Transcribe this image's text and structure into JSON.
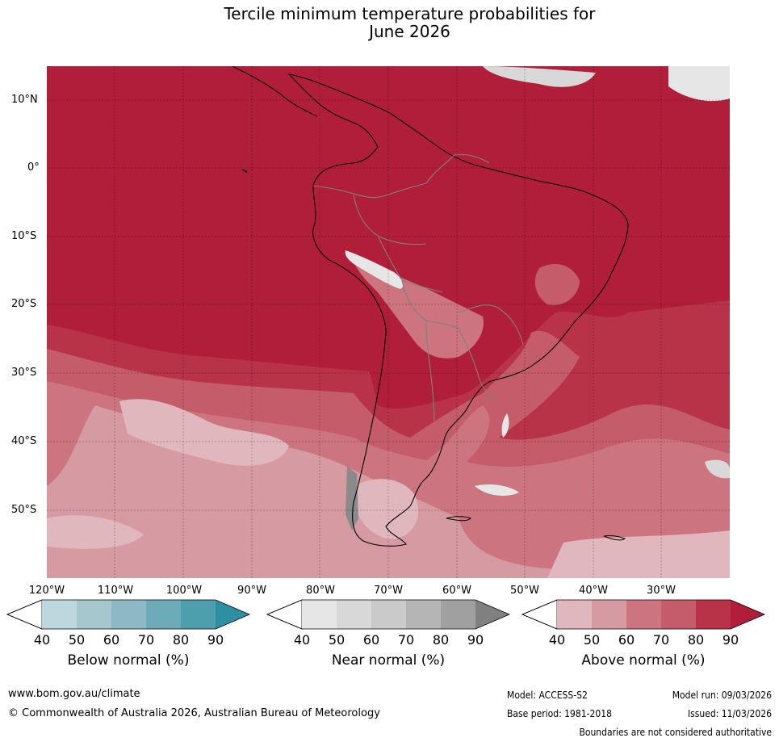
{
  "title": {
    "line1": "Tercile minimum temperature probabilities for",
    "line2": "June 2026"
  },
  "axes": {
    "lat_labels": [
      "10°N",
      "0°",
      "10°S",
      "20°S",
      "30°S",
      "40°S",
      "50°S"
    ],
    "lon_labels": [
      "120°W",
      "110°W",
      "100°W",
      "90°W",
      "80°W",
      "70°W",
      "60°W",
      "50°W",
      "40°W",
      "30°W"
    ]
  },
  "legend": {
    "ticks": [
      "40",
      "50",
      "60",
      "70",
      "80",
      "90"
    ],
    "below": {
      "label": "Below normal (%)",
      "colors": [
        "#bed7de",
        "#a6c7ce",
        "#8cb9c4",
        "#6eabb9",
        "#4d9fae",
        "#2e8fa3"
      ]
    },
    "near": {
      "label": "Near normal (%)",
      "colors": [
        "#e6e6e6",
        "#d8d8d8",
        "#cacaca",
        "#b5b5b5",
        "#a0a0a0",
        "#808080"
      ]
    },
    "above": {
      "label": "Above normal (%)",
      "colors": [
        "#e0b7bc",
        "#d69aa2",
        "#cc7580",
        "#c45c6a",
        "#b83248",
        "#b01e3a"
      ]
    }
  },
  "map_colors": {
    "ocean_base": "#b01e3a",
    "c80": "#b83248",
    "c70": "#c45c6a",
    "c60": "#cc7580",
    "c50": "#d69aa2",
    "c40": "#e0b7bc",
    "near_light": "#e6e6e6",
    "near_mid": "#cacaca",
    "near_dark": "#8a8a8a"
  },
  "footer": {
    "website": "www.bom.gov.au/climate",
    "copyright": "© Commonwealth of Australia 2026, Australian Bureau of Meteorology",
    "model": "Model: ACCESS-S2",
    "model_run": "Model run: 09/03/2026",
    "base_period": "Base period: 1981-2018",
    "issued": "Issued: 11/03/2026",
    "disclaimer": "Boundaries are not considered authoritative"
  }
}
